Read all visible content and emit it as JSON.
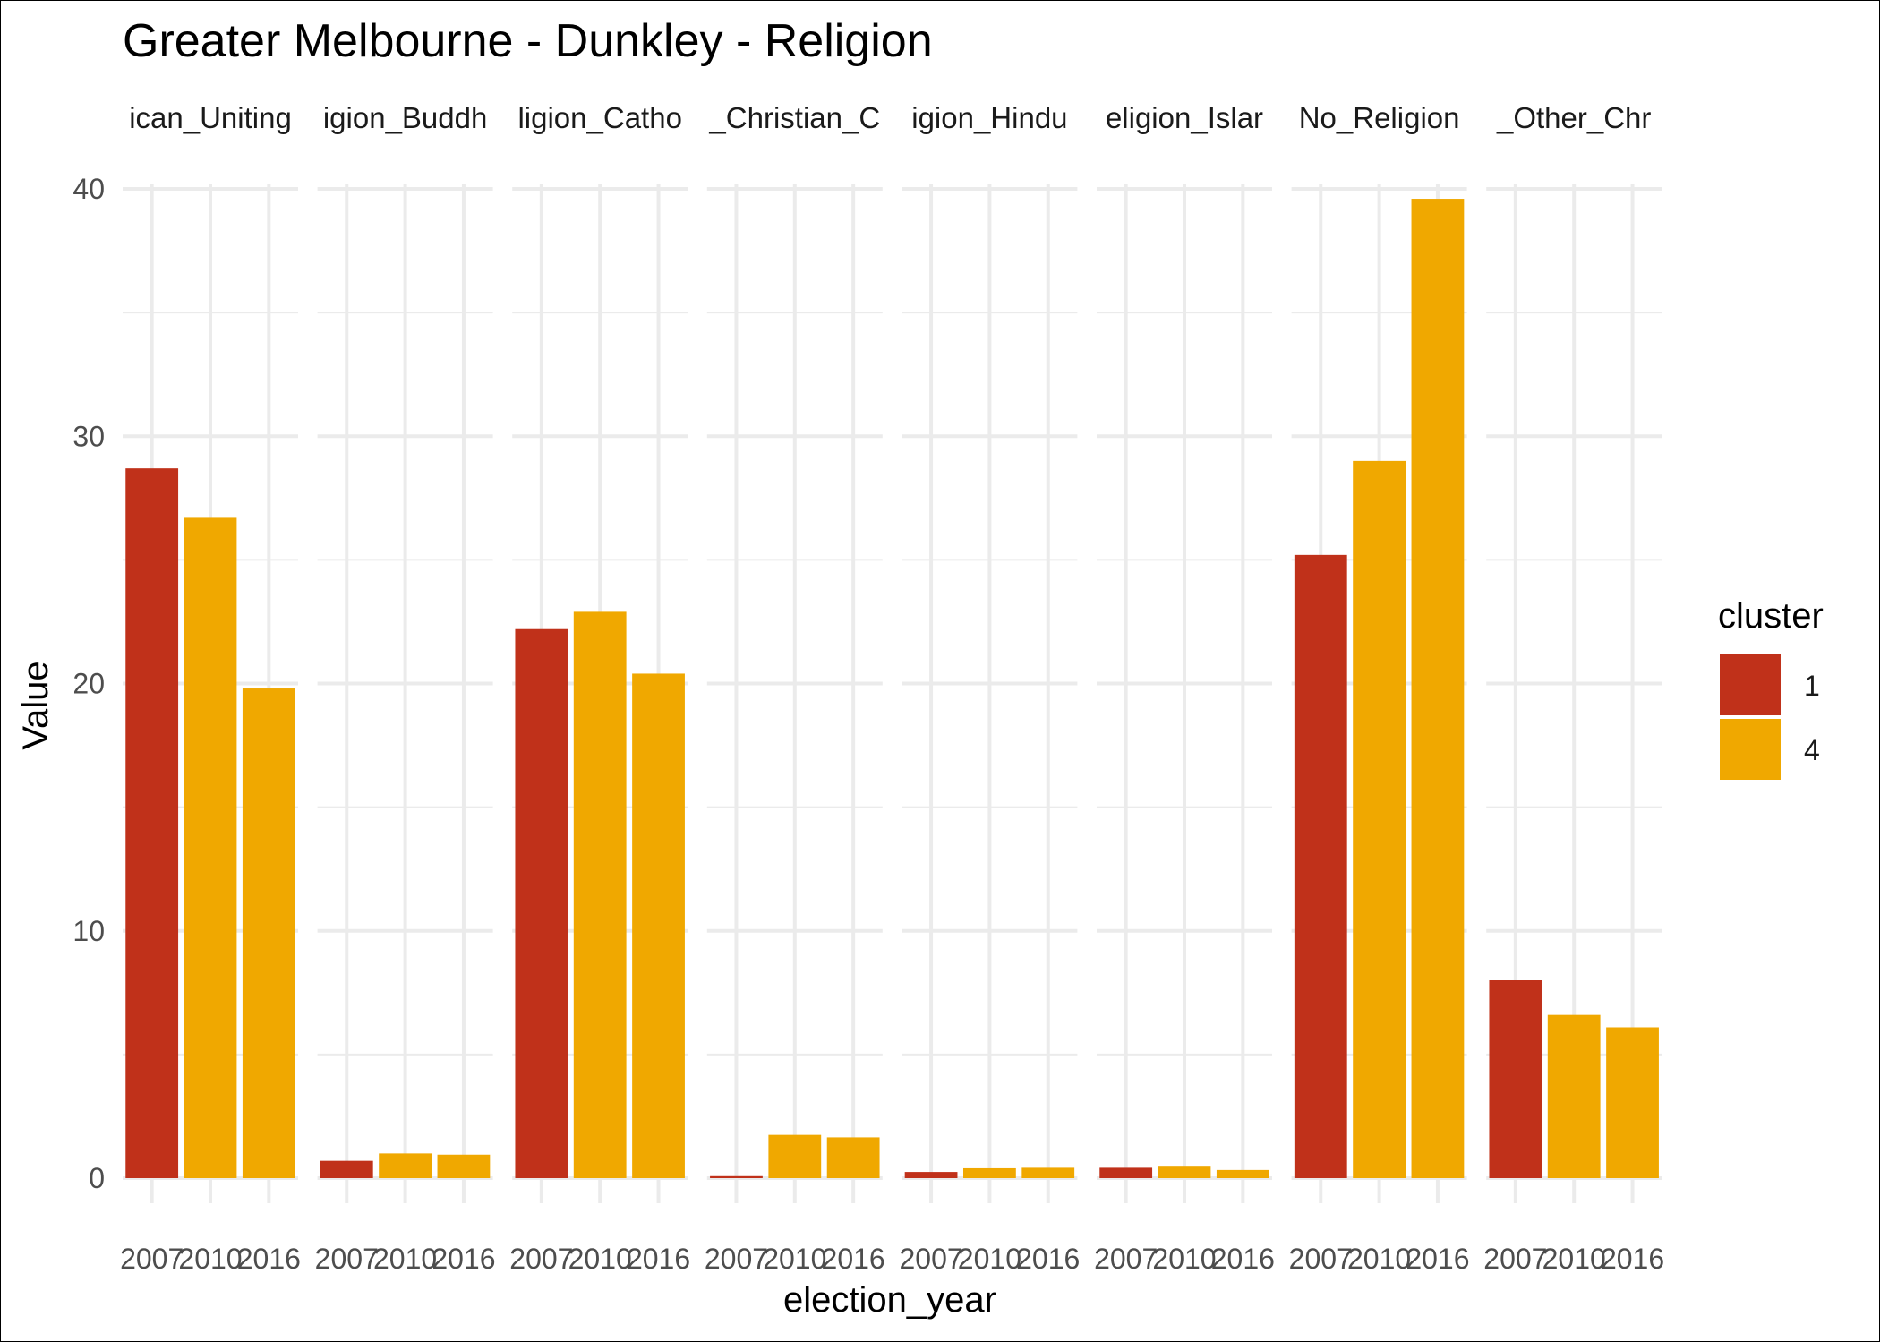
{
  "chart_data": {
    "type": "bar",
    "title": "Greater Melbourne - Dunkley - Religion",
    "xlabel": "election_year",
    "ylabel": "Value",
    "ylim": [
      0,
      40
    ],
    "yticks": [
      0,
      10,
      20,
      30,
      40
    ],
    "grid": true,
    "legend": {
      "title": "cluster",
      "position": "right",
      "entries": [
        {
          "label": "1",
          "color": "#C0311A"
        },
        {
          "label": "4",
          "color": "#F0A800"
        }
      ]
    },
    "categories": [
      "2007",
      "2010",
      "2016"
    ],
    "facets": [
      {
        "label": "ican_Uniting",
        "values": [
          28.7,
          26.7,
          19.8
        ],
        "clusters": [
          "1",
          "4",
          "4"
        ]
      },
      {
        "label": "igion_Buddh",
        "values": [
          0.7,
          1.0,
          0.95
        ],
        "clusters": [
          "1",
          "4",
          "4"
        ]
      },
      {
        "label": "ligion_Catho",
        "values": [
          22.2,
          22.9,
          20.4
        ],
        "clusters": [
          "1",
          "4",
          "4"
        ]
      },
      {
        "label": "_Christian_C",
        "values": [
          0.08,
          1.75,
          1.65
        ],
        "clusters": [
          "1",
          "4",
          "4"
        ]
      },
      {
        "label": "igion_Hindu",
        "values": [
          0.25,
          0.4,
          0.42
        ],
        "clusters": [
          "1",
          "4",
          "4"
        ]
      },
      {
        "label": "eligion_Islar",
        "values": [
          0.42,
          0.5,
          0.33
        ],
        "clusters": [
          "1",
          "4",
          "4"
        ]
      },
      {
        "label": "No_Religion",
        "values": [
          25.2,
          29.0,
          39.6
        ],
        "clusters": [
          "1",
          "4",
          "4"
        ]
      },
      {
        "label": "_Other_Chr",
        "values": [
          8.0,
          6.6,
          6.1
        ],
        "clusters": [
          "1",
          "4",
          "4"
        ]
      }
    ]
  }
}
